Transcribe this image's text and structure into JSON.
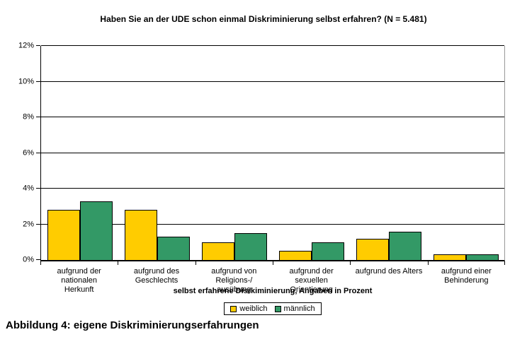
{
  "caption": "Abbildung 4: eigene Diskriminierungserfahrungen",
  "colors": {
    "weiblich": "#FFCC00",
    "maennlich": "#339966",
    "axis": "#000000",
    "plot_right_border": "#999999"
  },
  "legend": {
    "items": [
      {
        "label": "weiblich",
        "color": "#FFCC00"
      },
      {
        "label": "männlich",
        "color": "#339966"
      }
    ]
  },
  "chart_data": {
    "type": "bar",
    "title": "Haben Sie an der UDE schon einmal Diskriminierung selbst erfahren? (N = 5.481)",
    "xlabel": "selbst erfahrene Disrkiminierung, Angaben in Prozent",
    "ylabel": "",
    "ylim": [
      0,
      12
    ],
    "ytick_step": 2,
    "ytick_labels": [
      "0%",
      "2%",
      "4%",
      "6%",
      "8%",
      "10%",
      "12%"
    ],
    "grid": true,
    "legend_position": "bottom",
    "categories": [
      "aufgrund der nationalen\nHerkunft",
      "aufgrund des\nGeschlechts",
      "aufgrund von Religions-/\nausübung",
      "aufgrund der sexuellen\nOrientierung",
      "aufgrund des Alters",
      "aufgrund einer\nBehinderung"
    ],
    "series": [
      {
        "name": "weiblich",
        "color": "#FFCC00",
        "values": [
          2.8,
          2.8,
          1.0,
          0.5,
          1.2,
          0.3
        ]
      },
      {
        "name": "männlich",
        "color": "#339966",
        "values": [
          3.3,
          1.3,
          1.5,
          1.0,
          1.6,
          0.3
        ]
      }
    ]
  }
}
